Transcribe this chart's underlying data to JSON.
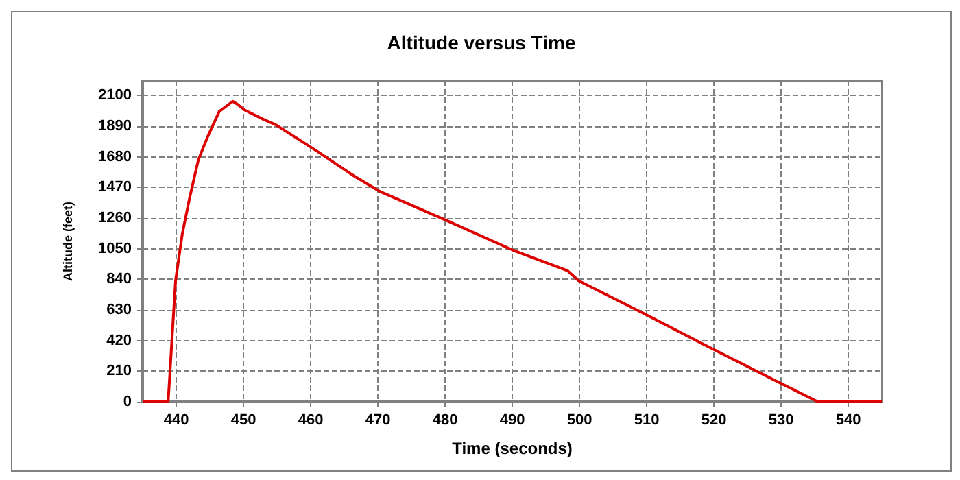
{
  "chart_data": {
    "type": "line",
    "title": "Altitude versus Time",
    "xlabel": "Time (seconds)",
    "ylabel": "Altitude (feet)",
    "series": [
      {
        "color": "#dd0000",
        "x": [
          435,
          438,
          438.8,
          439.9,
          440.9,
          442,
          443.3,
          444.7,
          446.4,
          448.4,
          449.1,
          450.2,
          452.8,
          454.8,
          458.2,
          460.9,
          466.4,
          470.4,
          479.9,
          490.1,
          498.2,
          499.9,
          509.4,
          519.5,
          529.4,
          535.5,
          545
        ],
        "values": [
          0,
          0,
          0,
          830,
          1150,
          1400,
          1660,
          1820,
          1990,
          2060,
          2040,
          2000,
          1940,
          1900,
          1800,
          1720,
          1550,
          1440,
          1250,
          1040,
          900,
          830,
          610,
          370,
          140,
          0,
          0
        ]
      }
    ],
    "xlim": [
      435,
      545
    ],
    "xticks": [
      440,
      450,
      460,
      470,
      480,
      490,
      500,
      510,
      520,
      530,
      540
    ],
    "ylim": [
      0,
      2200
    ],
    "yticks": [
      0,
      210,
      420,
      630,
      840,
      1050,
      1260,
      1470,
      1680,
      1890,
      2100
    ],
    "grid": true,
    "marker": "none",
    "line_style": "solid"
  }
}
